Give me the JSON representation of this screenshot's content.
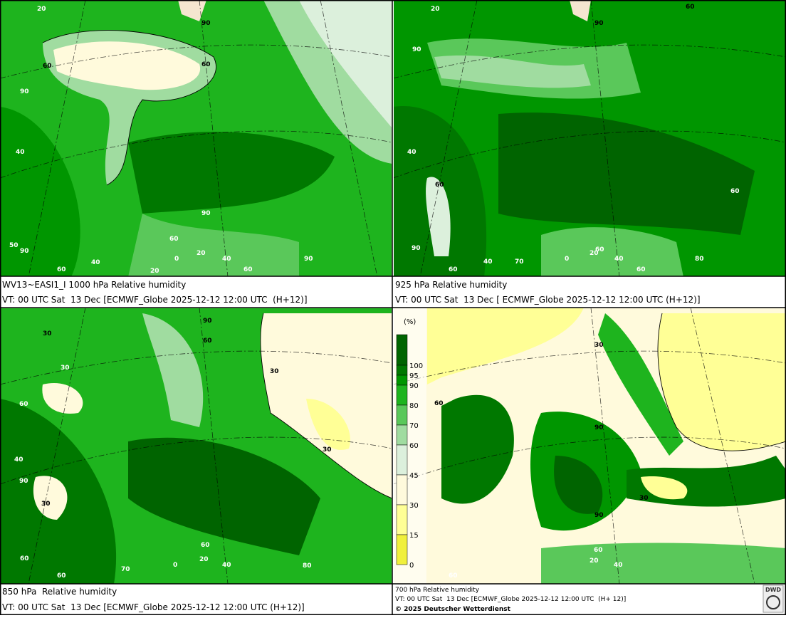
{
  "panels": [
    {
      "title": "WV13~EASI1_I 1000 hPa Relative humidity",
      "subtitle": "VT: 00 UTC Sat  13 Dec [ECMWF_Globe 2025-12-12 12:00 UTC  (H+12)]",
      "labels": [
        "20",
        "90",
        "60",
        "60",
        "90",
        "40",
        "90",
        "60",
        "50",
        "90",
        "0",
        "20",
        "40",
        "60",
        "20",
        "40",
        "60",
        "90"
      ]
    },
    {
      "title": "925 hPa Relative humidity",
      "subtitle": "VT: 00 UTC Sat  13 Dec [ ECMWF_Globe 2025-12-12 12:00 UTC (H+12)]",
      "labels": [
        "20",
        "90",
        "60",
        "90",
        "40",
        "60",
        "60",
        "90",
        "60",
        "40",
        "70",
        "0",
        "20",
        "60",
        "40",
        "60",
        "80"
      ]
    },
    {
      "title": "850 hPa  Relative humidity",
      "subtitle": "VT: 00 UTC Sat  13 Dec [ECMWF_Globe 2025-12-12 12:00 UTC (H+12)]",
      "labels": [
        "90",
        "30",
        "60",
        "30",
        "30",
        "60",
        "30",
        "40",
        "90",
        "30",
        "60",
        "70",
        "0",
        "20",
        "60",
        "40",
        "60",
        "80"
      ]
    },
    {
      "title": "700 hPa Relative humidity",
      "subtitle": "VT: 00 UTC Sat  13 Dec [ECMWF_Globe 2025-12-12 12:00 UTC  (H+ 12)]",
      "labels": [
        "30",
        "60",
        "90",
        "30",
        "90",
        "60",
        "20",
        "40",
        "60"
      ]
    }
  ],
  "legend": {
    "unit": "(%)",
    "levels": [
      100,
      95,
      90,
      80,
      70,
      60,
      45,
      30,
      15,
      0
    ],
    "colors": [
      "#006400",
      "#007800",
      "#009600",
      "#1eb41e",
      "#5ac85a",
      "#a0dca0",
      "#dcf0dc",
      "#fffadc",
      "#ffff96",
      "#f0f03c"
    ]
  },
  "copyright": "© 2025 Deutscher Wetterdienst",
  "logo": "DWD"
}
